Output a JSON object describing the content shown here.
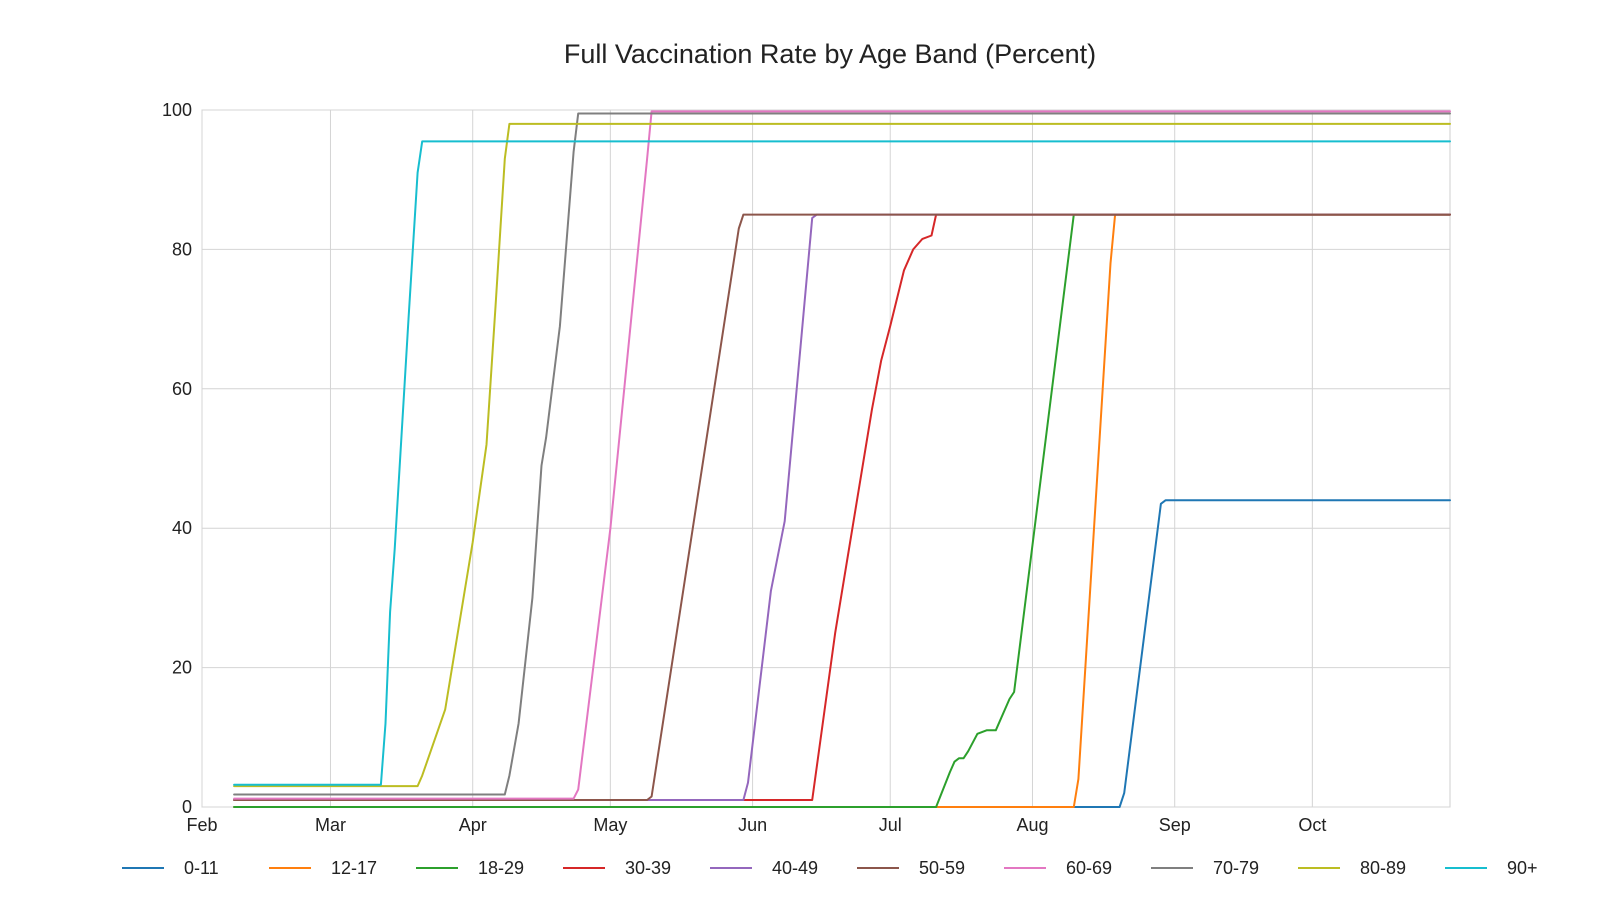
{
  "chart_data": {
    "type": "line",
    "title": "Full Vaccination Rate by Age Band (Percent)",
    "xlabel": "",
    "ylabel": "",
    "x_domain": [
      "2021-02-01",
      "2021-10-31"
    ],
    "xlim": [
      "2021-02-01",
      "2021-10-31"
    ],
    "ylim": [
      0,
      100
    ],
    "y_ticks": [
      0,
      20,
      40,
      60,
      80,
      100
    ],
    "x_ticks": [
      {
        "date": "2021-02-01",
        "label": "Feb"
      },
      {
        "date": "2021-03-01",
        "label": "Mar"
      },
      {
        "date": "2021-04-01",
        "label": "Apr"
      },
      {
        "date": "2021-05-01",
        "label": "May"
      },
      {
        "date": "2021-06-01",
        "label": "Jun"
      },
      {
        "date": "2021-07-01",
        "label": "Jul"
      },
      {
        "date": "2021-08-01",
        "label": "Aug"
      },
      {
        "date": "2021-09-01",
        "label": "Sep"
      },
      {
        "date": "2021-10-01",
        "label": "Oct"
      }
    ],
    "grid": true,
    "legend_position": "bottom",
    "series": [
      {
        "name": "0-11",
        "color": "#1f77b4",
        "points": [
          [
            "2021-02-08",
            0
          ],
          [
            "2021-08-20",
            0
          ],
          [
            "2021-08-21",
            2
          ],
          [
            "2021-08-29",
            43.5
          ],
          [
            "2021-08-30",
            44
          ],
          [
            "2021-10-31",
            44
          ]
        ]
      },
      {
        "name": "12-17",
        "color": "#ff7f0e",
        "points": [
          [
            "2021-02-08",
            0
          ],
          [
            "2021-08-10",
            0
          ],
          [
            "2021-08-11",
            4
          ],
          [
            "2021-08-18",
            78
          ],
          [
            "2021-08-19",
            85
          ],
          [
            "2021-10-31",
            85
          ]
        ]
      },
      {
        "name": "18-29",
        "color": "#2ca02c",
        "points": [
          [
            "2021-02-08",
            0
          ],
          [
            "2021-07-11",
            0
          ],
          [
            "2021-07-14",
            5
          ],
          [
            "2021-07-15",
            6.5
          ],
          [
            "2021-07-16",
            7
          ],
          [
            "2021-07-17",
            7
          ],
          [
            "2021-07-18",
            8
          ],
          [
            "2021-07-20",
            10.5
          ],
          [
            "2021-07-22",
            11
          ],
          [
            "2021-07-24",
            11
          ],
          [
            "2021-07-27",
            15.5
          ],
          [
            "2021-07-28",
            16.5
          ],
          [
            "2021-08-10",
            85
          ],
          [
            "2021-10-31",
            85
          ]
        ]
      },
      {
        "name": "30-39",
        "color": "#d62728",
        "points": [
          [
            "2021-02-08",
            1
          ],
          [
            "2021-06-14",
            1
          ],
          [
            "2021-06-19",
            25
          ],
          [
            "2021-06-27",
            57
          ],
          [
            "2021-06-29",
            64
          ],
          [
            "2021-07-01",
            69
          ],
          [
            "2021-07-04",
            77
          ],
          [
            "2021-07-06",
            80
          ],
          [
            "2021-07-08",
            81.5
          ],
          [
            "2021-07-10",
            82
          ],
          [
            "2021-07-11",
            85
          ],
          [
            "2021-10-31",
            85
          ]
        ]
      },
      {
        "name": "40-49",
        "color": "#9467bd",
        "points": [
          [
            "2021-02-08",
            1
          ],
          [
            "2021-05-30",
            1
          ],
          [
            "2021-05-31",
            3.5
          ],
          [
            "2021-06-05",
            31
          ],
          [
            "2021-06-08",
            41
          ],
          [
            "2021-06-14",
            84.5
          ],
          [
            "2021-06-15",
            85
          ],
          [
            "2021-10-31",
            85
          ]
        ]
      },
      {
        "name": "50-59",
        "color": "#8c564b",
        "points": [
          [
            "2021-02-08",
            1
          ],
          [
            "2021-05-09",
            1
          ],
          [
            "2021-05-10",
            1.5
          ],
          [
            "2021-05-29",
            83
          ],
          [
            "2021-05-30",
            85
          ],
          [
            "2021-10-31",
            85
          ]
        ]
      },
      {
        "name": "60-69",
        "color": "#e377c2",
        "points": [
          [
            "2021-02-08",
            1.2
          ],
          [
            "2021-04-23",
            1.2
          ],
          [
            "2021-04-24",
            2.5
          ],
          [
            "2021-05-01",
            40
          ],
          [
            "2021-05-09",
            93
          ],
          [
            "2021-05-10",
            99.8
          ],
          [
            "2021-10-31",
            99.8
          ]
        ]
      },
      {
        "name": "70-79",
        "color": "#7f7f7f",
        "points": [
          [
            "2021-02-08",
            1.8
          ],
          [
            "2021-04-08",
            1.8
          ],
          [
            "2021-04-09",
            4.5
          ],
          [
            "2021-04-11",
            12
          ],
          [
            "2021-04-14",
            30
          ],
          [
            "2021-04-16",
            49
          ],
          [
            "2021-04-17",
            53
          ],
          [
            "2021-04-20",
            69
          ],
          [
            "2021-04-23",
            94
          ],
          [
            "2021-04-24",
            99.5
          ],
          [
            "2021-10-31",
            99.5
          ]
        ]
      },
      {
        "name": "80-89",
        "color": "#bcbd22",
        "points": [
          [
            "2021-02-08",
            3
          ],
          [
            "2021-03-20",
            3
          ],
          [
            "2021-03-21",
            4.5
          ],
          [
            "2021-03-26",
            14
          ],
          [
            "2021-04-01",
            38
          ],
          [
            "2021-04-04",
            52
          ],
          [
            "2021-04-06",
            72
          ],
          [
            "2021-04-08",
            93
          ],
          [
            "2021-04-09",
            98
          ],
          [
            "2021-10-31",
            98
          ]
        ]
      },
      {
        "name": "90+",
        "color": "#17becf",
        "points": [
          [
            "2021-02-08",
            3.2
          ],
          [
            "2021-03-12",
            3.2
          ],
          [
            "2021-03-13",
            12
          ],
          [
            "2021-03-14",
            28
          ],
          [
            "2021-03-15",
            37
          ],
          [
            "2021-03-18",
            70
          ],
          [
            "2021-03-20",
            91
          ],
          [
            "2021-03-21",
            95.5
          ],
          [
            "2021-10-31",
            95.5
          ]
        ]
      }
    ]
  }
}
